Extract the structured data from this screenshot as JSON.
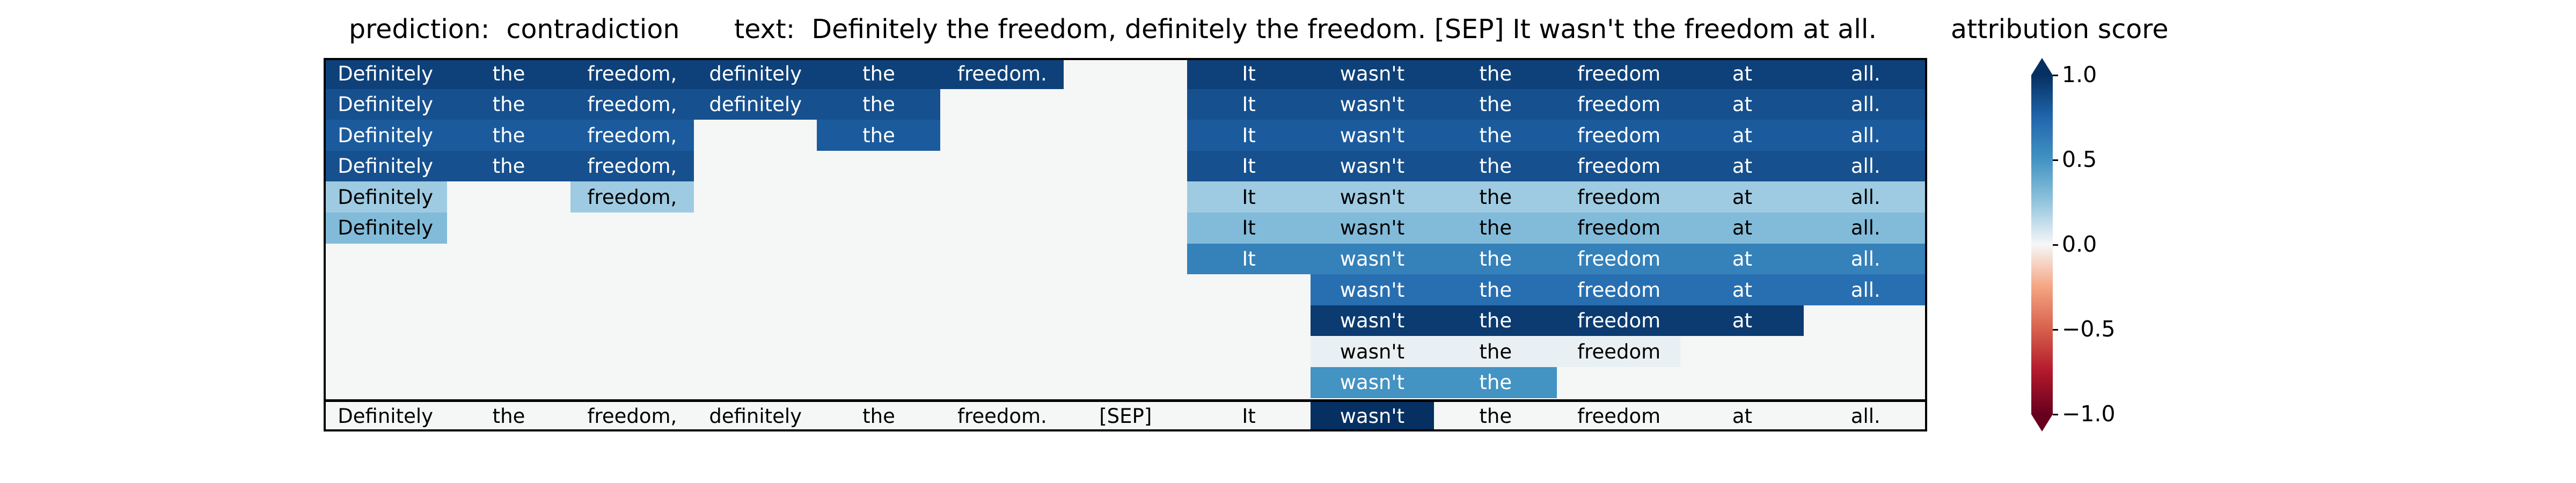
{
  "chart_data": {
    "type": "heatmap",
    "title_left": "prediction:  contradiction",
    "title_center": "text:  Definitely the freedom, definitely the freedom. [SEP] It wasn't the freedom at all.",
    "title_right": "attribution score",
    "tokens": [
      "Definitely",
      "the",
      "freedom,",
      "definitely",
      "the",
      "freedom.",
      "[SEP]",
      "It",
      "wasn't",
      "the",
      "freedom",
      "at",
      "all."
    ],
    "colorbar": {
      "min": -1.0,
      "max": 1.0,
      "ticks": [
        "1.0",
        "0.5",
        "0.0",
        "−0.5",
        "−1.0"
      ],
      "extend": "both",
      "colormap": "RdBu"
    },
    "rows": [
      [
        0.92,
        0.92,
        0.92,
        0.92,
        0.92,
        0.92,
        0.0,
        0.92,
        0.92,
        0.92,
        0.92,
        0.92,
        0.92
      ],
      [
        0.85,
        0.85,
        0.85,
        0.85,
        0.85,
        0.0,
        0.0,
        0.85,
        0.85,
        0.85,
        0.85,
        0.85,
        0.85
      ],
      [
        0.8,
        0.8,
        0.8,
        0.0,
        0.8,
        0.0,
        0.0,
        0.8,
        0.8,
        0.8,
        0.8,
        0.8,
        0.8
      ],
      [
        0.85,
        0.85,
        0.85,
        0.0,
        0.0,
        0.0,
        0.0,
        0.85,
        0.85,
        0.85,
        0.85,
        0.85,
        0.85
      ],
      [
        0.22,
        0.0,
        0.22,
        0.0,
        0.0,
        0.0,
        0.0,
        0.22,
        0.22,
        0.22,
        0.22,
        0.22,
        0.22
      ],
      [
        0.3,
        0.0,
        0.0,
        0.0,
        0.0,
        0.0,
        0.0,
        0.3,
        0.3,
        0.3,
        0.3,
        0.3,
        0.3
      ],
      [
        0.0,
        0.0,
        0.0,
        0.0,
        0.0,
        0.0,
        0.0,
        0.6,
        0.6,
        0.6,
        0.6,
        0.6,
        0.6
      ],
      [
        0.0,
        0.0,
        0.0,
        0.0,
        0.0,
        0.0,
        0.0,
        0.0,
        0.7,
        0.7,
        0.7,
        0.7,
        0.7
      ],
      [
        0.0,
        0.0,
        0.0,
        0.0,
        0.0,
        0.0,
        0.0,
        0.0,
        0.95,
        0.95,
        0.95,
        0.95,
        0.0
      ],
      [
        0.0,
        0.0,
        0.0,
        0.0,
        0.0,
        0.0,
        0.0,
        0.0,
        0.03,
        0.03,
        0.03,
        0.0,
        0.0
      ],
      [
        0.0,
        0.0,
        0.0,
        0.0,
        0.0,
        0.0,
        0.0,
        0.0,
        0.5,
        0.5,
        0.0,
        0.0,
        0.0
      ],
      [
        0.0,
        0.0,
        0.0,
        0.0,
        0.0,
        0.0,
        0.0,
        0.0,
        1.0,
        0.0,
        0.0,
        0.0,
        0.0
      ]
    ],
    "row_labels_shown": [
      [
        1,
        1,
        1,
        1,
        1,
        1,
        0,
        1,
        1,
        1,
        1,
        1,
        1
      ],
      [
        1,
        1,
        1,
        1,
        1,
        0,
        0,
        1,
        1,
        1,
        1,
        1,
        1
      ],
      [
        1,
        1,
        1,
        0,
        1,
        0,
        0,
        1,
        1,
        1,
        1,
        1,
        1
      ],
      [
        1,
        1,
        1,
        0,
        0,
        0,
        0,
        1,
        1,
        1,
        1,
        1,
        1
      ],
      [
        1,
        0,
        1,
        0,
        0,
        0,
        0,
        1,
        1,
        1,
        1,
        1,
        1
      ],
      [
        1,
        0,
        0,
        0,
        0,
        0,
        0,
        1,
        1,
        1,
        1,
        1,
        1
      ],
      [
        0,
        0,
        0,
        0,
        0,
        0,
        0,
        1,
        1,
        1,
        1,
        1,
        1
      ],
      [
        0,
        0,
        0,
        0,
        0,
        0,
        0,
        0,
        1,
        1,
        1,
        1,
        1
      ],
      [
        0,
        0,
        0,
        0,
        0,
        0,
        0,
        0,
        1,
        1,
        1,
        1,
        0
      ],
      [
        0,
        0,
        0,
        0,
        0,
        0,
        0,
        0,
        1,
        1,
        1,
        0,
        0
      ],
      [
        0,
        0,
        0,
        0,
        0,
        0,
        0,
        0,
        1,
        1,
        0,
        0,
        0
      ],
      [
        1,
        1,
        1,
        1,
        1,
        1,
        1,
        1,
        1,
        1,
        1,
        1,
        1
      ]
    ]
  }
}
